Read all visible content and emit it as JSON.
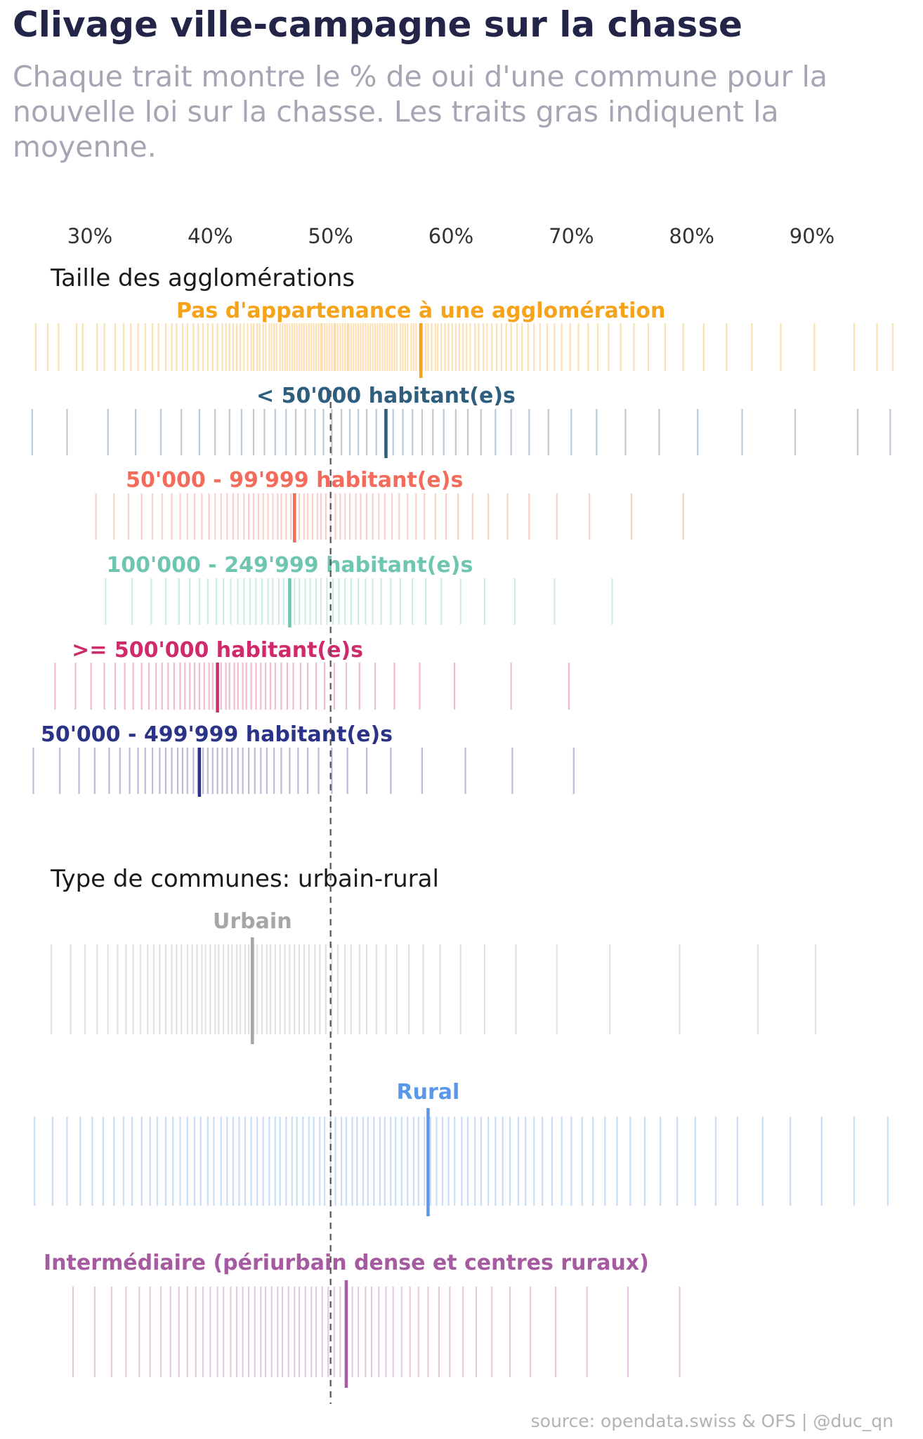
{
  "title": "Clivage ville-campagne sur la chasse",
  "subtitle": "Chaque trait montre le % de oui d'une commune pour la nouvelle loi sur la chasse. Les traits gras indiquent la moyenne.",
  "source": "source: opendata.swiss & OFS | @duc_qn",
  "chart_data": {
    "type": "strip",
    "x_axis": {
      "range": [
        25,
        97
      ],
      "ticks": [
        30,
        40,
        50,
        60,
        70,
        80,
        90
      ],
      "tick_labels": [
        "30%",
        "40%",
        "50%",
        "60%",
        "70%",
        "80%",
        "90%"
      ],
      "position": "top"
    },
    "reference_line": 50,
    "grid": false,
    "legend": "none (labels above each strip)",
    "panels": [
      {
        "title": "Taille des agglomérations",
        "series": [
          {
            "name": "Pas d'appartenance à une agglomération",
            "color": "#f5a31a",
            "mean": 57.5,
            "values": [
              25.5,
              26.5,
              27.4,
              28.9,
              29.4,
              30.6,
              31.2,
              32.1,
              32.8,
              33.4,
              34.0,
              34.6,
              35.2,
              35.7,
              36.3,
              36.8,
              37.2,
              37.7,
              38.1,
              38.6,
              39.0,
              39.4,
              39.8,
              40.2,
              40.6,
              41.0,
              41.3,
              41.6,
              41.9,
              42.2,
              42.5,
              42.8,
              43.1,
              43.4,
              43.6,
              43.9,
              44.1,
              44.4,
              44.6,
              44.9,
              45.1,
              45.3,
              45.5,
              45.8,
              46.0,
              46.2,
              46.4,
              46.6,
              46.8,
              47.0,
              47.2,
              47.4,
              47.6,
              47.8,
              48.0,
              48.2,
              48.4,
              48.6,
              48.8,
              49.0,
              49.2,
              49.3,
              49.5,
              49.7,
              49.9,
              50.1,
              50.3,
              50.4,
              50.6,
              50.8,
              51.0,
              51.2,
              51.4,
              51.5,
              51.7,
              51.9,
              52.1,
              52.3,
              52.5,
              52.7,
              52.9,
              53.1,
              53.3,
              53.5,
              53.7,
              53.9,
              54.1,
              54.3,
              54.5,
              54.7,
              54.9,
              55.1,
              55.3,
              55.5,
              55.8,
              56.0,
              56.2,
              56.4,
              56.7,
              56.9,
              57.1,
              57.4,
              57.6,
              57.9,
              58.1,
              58.4,
              58.7,
              58.9,
              59.2,
              59.5,
              59.8,
              60.1,
              60.4,
              60.7,
              61.0,
              61.3,
              61.6,
              62.0,
              62.3,
              62.7,
              63.0,
              63.4,
              63.8,
              64.2,
              64.6,
              65.0,
              65.5,
              65.9,
              66.4,
              66.9,
              67.4,
              68.0,
              68.6,
              69.2,
              69.9,
              70.6,
              71.4,
              72.2,
              73.1,
              74.1,
              75.2,
              76.4,
              77.8,
              79.3,
              81.0,
              82.9,
              85.0,
              87.4,
              90.2,
              93.5
            ],
            "outlier_values": [
              95.4,
              96.7
            ]
          },
          {
            "name": "< 50'000 habitant(e)s",
            "color": "#2e5e7e",
            "mean": 54.6,
            "values": [
              25.2,
              28.1,
              31.5,
              33.8,
              35.9,
              37.6,
              39.1,
              40.4,
              41.6,
              42.6,
              43.6,
              44.5,
              45.4,
              46.3,
              47.1,
              47.9,
              48.7,
              49.4,
              50.1,
              50.9,
              51.6,
              52.3,
              53.0,
              53.8,
              54.5,
              55.2,
              56.0,
              56.8,
              57.6,
              58.5,
              59.4,
              60.4,
              61.4,
              62.5,
              63.7,
              65.0,
              66.5,
              68.1,
              70.0,
              72.1,
              74.5,
              77.3,
              80.5,
              84.2,
              88.6,
              93.8,
              96.5
            ]
          },
          {
            "name": "50'000 - 99'999 habitant(e)s",
            "color": "#f26b5b",
            "mean": 47.0,
            "values": [
              30.5,
              32.0,
              33.2,
              34.3,
              35.2,
              36.0,
              36.8,
              37.5,
              38.1,
              38.7,
              39.3,
              39.9,
              40.4,
              40.9,
              41.4,
              41.9,
              42.3,
              42.8,
              43.2,
              43.6,
              44.0,
              44.4,
              44.8,
              45.2,
              45.6,
              45.9,
              46.3,
              46.7,
              47.0,
              47.4,
              47.8,
              48.1,
              48.5,
              48.9,
              49.2,
              49.6,
              50.0,
              50.4,
              50.8,
              51.2,
              51.6,
              52.1,
              52.5,
              53.0,
              53.5,
              54.0,
              54.5,
              55.1,
              55.7,
              56.4,
              57.1,
              57.8,
              58.7,
              59.6,
              60.6,
              61.8,
              63.1,
              64.7,
              66.5,
              68.8,
              71.5,
              75.0,
              79.3
            ]
          },
          {
            "name": "100'000 - 249'999 habitant(e)s",
            "color": "#6ec5b0",
            "mean": 46.6,
            "values": [
              31.3,
              33.5,
              35.1,
              36.3,
              37.4,
              38.3,
              39.1,
              39.8,
              40.5,
              41.1,
              41.7,
              42.3,
              42.8,
              43.3,
              43.8,
              44.3,
              44.8,
              45.2,
              45.7,
              46.1,
              46.6,
              47.0,
              47.4,
              47.9,
              48.3,
              48.8,
              49.2,
              49.7,
              50.2,
              50.7,
              51.2,
              51.7,
              52.3,
              52.9,
              53.5,
              54.2,
              55.0,
              55.8,
              56.8,
              57.9,
              59.2,
              60.8,
              62.8,
              65.3,
              68.6,
              73.4
            ]
          },
          {
            "name": ">= 500'000 habitant(e)s",
            "color": "#cf2a6b",
            "mean": 40.6,
            "values": [
              27.1,
              28.8,
              30.1,
              31.2,
              32.1,
              32.9,
              33.6,
              34.3,
              34.9,
              35.5,
              36.0,
              36.5,
              37.0,
              37.5,
              37.9,
              38.3,
              38.7,
              39.1,
              39.5,
              39.9,
              40.2,
              40.6,
              40.9,
              41.3,
              41.6,
              42.0,
              42.3,
              42.7,
              43.0,
              43.4,
              43.8,
              44.2,
              44.6,
              45.0,
              45.4,
              45.9,
              46.4,
              46.9,
              47.5,
              48.1,
              48.8,
              49.5,
              50.3,
              51.3,
              52.4,
              53.7,
              55.3,
              57.4,
              60.3,
              65.0,
              69.8
            ]
          },
          {
            "name": "50'000 - 499'999 habitant(e)s",
            "color": "#2b3386",
            "mean": 39.1,
            "values": [
              25.3,
              27.5,
              29.1,
              30.4,
              31.6,
              32.5,
              33.3,
              34.0,
              34.6,
              35.2,
              35.8,
              36.3,
              36.8,
              37.3,
              37.7,
              38.1,
              38.6,
              39.0,
              39.4,
              39.8,
              40.2,
              40.6,
              41.0,
              41.4,
              41.8,
              42.3,
              42.7,
              43.2,
              43.7,
              44.2,
              44.7,
              45.3,
              45.9,
              46.6,
              47.3,
              48.1,
              49.0,
              50.1,
              51.4,
              53.0,
              55.0,
              57.6,
              61.2,
              65.1,
              70.2
            ]
          }
        ]
      },
      {
        "title": "Type de communes: urbain-rural",
        "series": [
          {
            "name": "Urbain",
            "color": "#a6a6a6",
            "mean": 43.5,
            "values": [
              26.8,
              28.4,
              29.6,
              30.6,
              31.5,
              32.3,
              33.0,
              33.6,
              34.2,
              34.8,
              35.3,
              35.8,
              36.3,
              36.8,
              37.2,
              37.6,
              38.1,
              38.5,
              38.9,
              39.3,
              39.6,
              40.0,
              40.4,
              40.7,
              41.1,
              41.5,
              41.8,
              42.2,
              42.5,
              42.9,
              43.2,
              43.6,
              43.9,
              44.3,
              44.7,
              45.0,
              45.4,
              45.8,
              46.2,
              46.6,
              47.0,
              47.4,
              47.8,
              48.2,
              48.7,
              49.1,
              49.6,
              50.1,
              50.6,
              51.2,
              51.7,
              52.4,
              53.0,
              53.8,
              54.6,
              55.5,
              56.5,
              57.7,
              59.1,
              60.8,
              62.8,
              65.4,
              68.8,
              73.2,
              79.0,
              85.5,
              90.3
            ]
          },
          {
            "name": "Rural",
            "color": "#5b97e8",
            "mean": 58.1,
            "values": [
              25.4,
              26.9,
              28.1,
              29.2,
              30.2,
              31.1,
              32.0,
              32.8,
              33.5,
              34.3,
              35.0,
              35.6,
              36.3,
              36.9,
              37.5,
              38.1,
              38.7,
              39.2,
              39.8,
              40.3,
              40.9,
              41.4,
              41.9,
              42.4,
              42.9,
              43.4,
              43.9,
              44.4,
              44.9,
              45.4,
              45.8,
              46.3,
              46.8,
              47.2,
              47.7,
              48.2,
              48.6,
              49.1,
              49.5,
              50.0,
              50.4,
              50.9,
              51.3,
              51.8,
              52.2,
              52.7,
              53.1,
              53.6,
              54.1,
              54.5,
              55.0,
              55.4,
              55.9,
              56.4,
              56.9,
              57.3,
              57.8,
              58.3,
              58.8,
              59.3,
              59.8,
              60.3,
              60.9,
              61.4,
              62.0,
              62.5,
              63.1,
              63.7,
              64.3,
              64.9,
              65.6,
              66.2,
              66.9,
              67.6,
              68.4,
              69.2,
              70.0,
              70.9,
              71.8,
              72.8,
              73.8,
              74.9,
              76.1,
              77.4,
              78.8,
              80.3,
              82.0,
              83.8,
              85.9,
              88.2,
              90.8,
              93.5,
              96.3
            ]
          },
          {
            "name": "Intermédiaire (périurbain dense et centres ruraux)",
            "color": "#a65aa0",
            "mean": 51.3,
            "values": [
              28.6,
              30.4,
              31.8,
              33.0,
              34.1,
              35.0,
              35.9,
              36.7,
              37.4,
              38.1,
              38.8,
              39.4,
              40.0,
              40.6,
              41.1,
              41.7,
              42.2,
              42.7,
              43.2,
              43.7,
              44.2,
              44.6,
              45.1,
              45.6,
              46.0,
              46.5,
              47.0,
              47.4,
              47.9,
              48.4,
              48.8,
              49.3,
              49.8,
              50.3,
              50.8,
              51.3,
              51.8,
              52.3,
              52.9,
              53.4,
              54.0,
              54.6,
              55.2,
              55.9,
              56.6,
              57.3,
              58.1,
              59.0,
              59.9,
              61.0,
              62.1,
              63.4,
              64.9,
              66.6,
              68.7,
              71.3,
              74.7,
              79.0
            ]
          }
        ]
      }
    ]
  }
}
